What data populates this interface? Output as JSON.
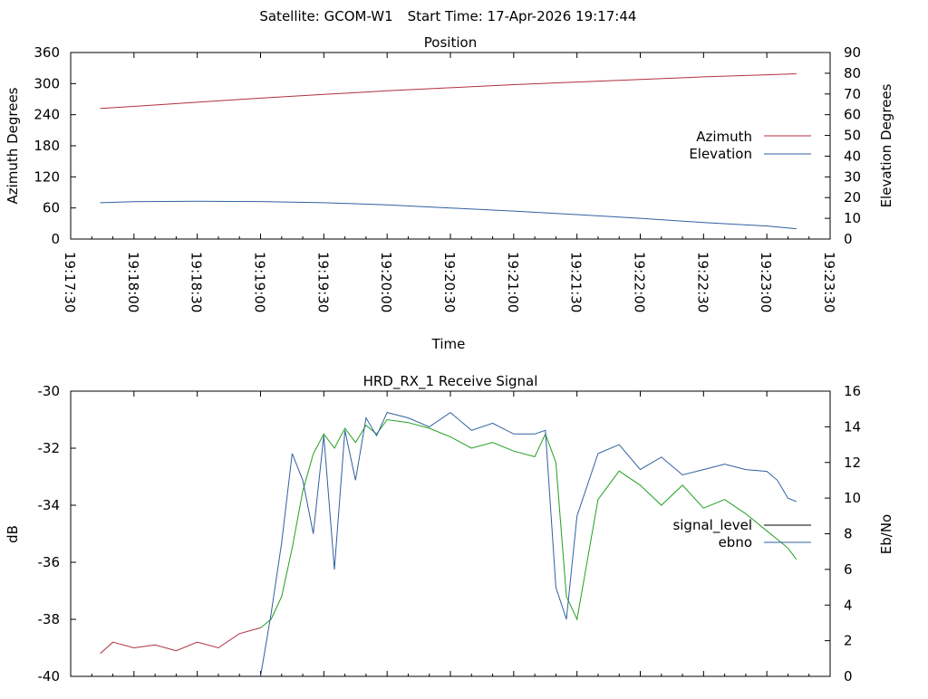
{
  "header": {
    "satellite_label": "Satellite: GCOM-W1",
    "start_time_label": "Start Time: 17-Apr-2026 19:17:44"
  },
  "chart_data": [
    {
      "type": "line",
      "title": "Position",
      "xlabel": "Time",
      "ylabel": "Azimuth Degrees",
      "y2label": "Elevation Degrees",
      "xlim": [
        "19:17:30",
        "19:23:30"
      ],
      "ylim": [
        0,
        360
      ],
      "y2lim": [
        0,
        90
      ],
      "x_ticks": [
        "19:17:30",
        "19:18:00",
        "19:18:30",
        "19:19:00",
        "19:19:30",
        "19:20:00",
        "19:20:30",
        "19:21:00",
        "19:21:30",
        "19:22:00",
        "19:22:30",
        "19:23:00",
        "19:23:30"
      ],
      "y_ticks": [
        "0",
        "60",
        "120",
        "180",
        "240",
        "300",
        "360"
      ],
      "y2_ticks": [
        "0",
        "10",
        "20",
        "30",
        "40",
        "50",
        "60",
        "70",
        "80",
        "90"
      ],
      "legend_position": "right",
      "grid": false,
      "series": [
        {
          "name": "Azimuth",
          "axis": "left",
          "color": "#b03040",
          "x": [
            "19:17:44",
            "19:18:00",
            "19:18:30",
            "19:19:00",
            "19:19:30",
            "19:20:00",
            "19:20:30",
            "19:21:00",
            "19:21:30",
            "19:22:00",
            "19:22:30",
            "19:23:00",
            "19:23:14"
          ],
          "values": [
            252,
            256,
            264,
            272,
            279,
            286,
            292,
            298,
            303,
            308,
            313,
            317,
            319
          ]
        },
        {
          "name": "Elevation",
          "axis": "right",
          "color": "#3060a0",
          "x": [
            "19:17:44",
            "19:18:00",
            "19:18:30",
            "19:19:00",
            "19:19:30",
            "19:20:00",
            "19:20:30",
            "19:21:00",
            "19:21:30",
            "19:22:00",
            "19:22:30",
            "19:23:00",
            "19:23:14"
          ],
          "values": [
            17.5,
            18,
            18.2,
            18.1,
            17.5,
            16.5,
            15,
            13.5,
            11.8,
            10,
            8,
            6.3,
            5
          ]
        }
      ]
    },
    {
      "type": "line",
      "title": "HRD_RX_1 Receive Signal",
      "xlabel": "",
      "ylabel": "dB",
      "y2label": "Eb/No",
      "xlim": [
        "19:17:30",
        "19:23:30"
      ],
      "ylim": [
        -40,
        -30
      ],
      "y2lim": [
        0,
        16
      ],
      "y_ticks": [
        "-40",
        "-38",
        "-36",
        "-34",
        "-32",
        "-30"
      ],
      "y2_ticks": [
        "0",
        "2",
        "4",
        "6",
        "8",
        "10",
        "12",
        "14",
        "16"
      ],
      "legend_position": "right",
      "grid": false,
      "series": [
        {
          "name": "signal_level",
          "axis": "left",
          "legend_color": "#000000",
          "colors": {
            "low": "#b03040",
            "high": "#20a020"
          },
          "x": [
            "19:17:44",
            "19:17:50",
            "19:18:00",
            "19:18:10",
            "19:18:20",
            "19:18:30",
            "19:18:40",
            "19:18:50",
            "19:19:00",
            "19:19:05",
            "19:19:10",
            "19:19:15",
            "19:19:20",
            "19:19:25",
            "19:19:30",
            "19:19:35",
            "19:19:40",
            "19:19:45",
            "19:19:50",
            "19:19:55",
            "19:20:00",
            "19:20:10",
            "19:20:20",
            "19:20:30",
            "19:20:40",
            "19:20:50",
            "19:21:00",
            "19:21:10",
            "19:21:15",
            "19:21:20",
            "19:21:25",
            "19:21:30",
            "19:21:40",
            "19:21:50",
            "19:22:00",
            "19:22:10",
            "19:22:20",
            "19:22:30",
            "19:22:40",
            "19:22:50",
            "19:23:00",
            "19:23:05",
            "19:23:10",
            "19:23:14"
          ],
          "values": [
            -39.2,
            -38.8,
            -39.0,
            -38.9,
            -39.1,
            -38.8,
            -39.0,
            -38.5,
            -38.3,
            -38.0,
            -37.2,
            -35.5,
            -33.5,
            -32.2,
            -31.5,
            -32.0,
            -31.3,
            -31.8,
            -31.2,
            -31.5,
            -31.0,
            -31.1,
            -31.3,
            -31.6,
            -32.0,
            -31.8,
            -32.1,
            -32.3,
            -31.5,
            -32.5,
            -37.2,
            -38.0,
            -33.8,
            -32.8,
            -33.3,
            -34.0,
            -33.3,
            -34.1,
            -33.8,
            -34.3,
            -34.9,
            -35.2,
            -35.5,
            -35.9
          ]
        },
        {
          "name": "ebno",
          "axis": "right",
          "color": "#3060a0",
          "x": [
            "19:19:00",
            "19:19:05",
            "19:19:10",
            "19:19:15",
            "19:19:20",
            "19:19:25",
            "19:19:30",
            "19:19:35",
            "19:19:40",
            "19:19:45",
            "19:19:50",
            "19:19:55",
            "19:20:00",
            "19:20:10",
            "19:20:20",
            "19:20:30",
            "19:20:40",
            "19:20:50",
            "19:21:00",
            "19:21:10",
            "19:21:15",
            "19:21:20",
            "19:21:25",
            "19:21:30",
            "19:21:40",
            "19:21:50",
            "19:22:00",
            "19:22:10",
            "19:22:20",
            "19:22:30",
            "19:22:40",
            "19:22:50",
            "19:23:00",
            "19:23:05",
            "19:23:10",
            "19:23:14"
          ],
          "values": [
            0,
            3.5,
            7.5,
            12.5,
            11.0,
            8.0,
            13.5,
            6.0,
            13.8,
            11.0,
            14.5,
            13.5,
            14.8,
            14.5,
            14.0,
            14.8,
            13.8,
            14.2,
            13.6,
            13.6,
            13.8,
            5.0,
            3.2,
            9.0,
            12.5,
            13.0,
            11.6,
            12.3,
            11.3,
            11.6,
            11.9,
            11.6,
            11.5,
            11.0,
            10.0,
            9.8
          ]
        }
      ]
    }
  ]
}
